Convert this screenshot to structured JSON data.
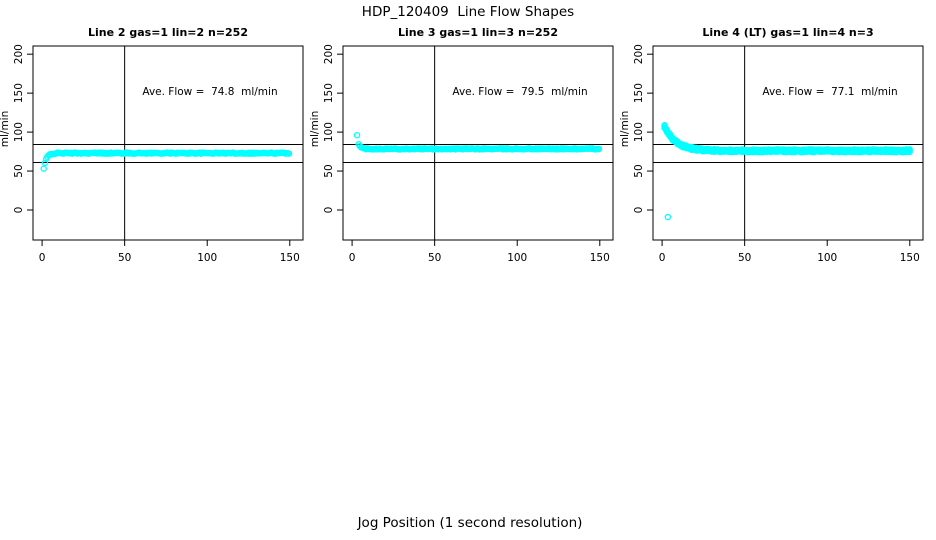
{
  "chart_data": {
    "type": "scatter",
    "title": "HDP_120409  Line Flow Shapes",
    "xlabel": "Jog Position (1 second resolution)",
    "ylabel": "ml/min",
    "x_ticks": [
      0,
      50,
      100,
      150
    ],
    "y_ticks": [
      0,
      50,
      100,
      150,
      200
    ],
    "xlim": [
      -5.5,
      158
    ],
    "ylim": [
      -38.5,
      210.5
    ],
    "grid": false,
    "legend": "none",
    "point_color": "#00ffff",
    "axis_color": "#000000",
    "background": "#ffffff",
    "vline_x": 50,
    "ref_lines_y": [
      84,
      61
    ],
    "plots": [
      {
        "title": "Line 2 gas=1 lin=2 n=252",
        "annotation": "Ave. Flow =  74.8  ml/min",
        "ave_flow_ml_min": 74.8,
        "n": 252,
        "series_model": {
          "x_start": 1,
          "x_end": 150,
          "x_step": 0.75,
          "steady": 73,
          "start_offset": -20,
          "tau": 1.6,
          "runs": 1,
          "description": "rises from ~55 ml/min at x=1 to a flat band of ~73 ml/min by x=8, constant to x=150"
        },
        "outliers": []
      },
      {
        "title": "Line 3 gas=1 lin=3 n=252",
        "annotation": "Ave. Flow =  79.5  ml/min",
        "ave_flow_ml_min": 79.5,
        "n": 252,
        "series_model": {
          "x_start": 4,
          "x_end": 150,
          "x_step": 0.75,
          "steady": 78.5,
          "start_offset": 6,
          "tau": 1.2,
          "runs": 1,
          "description": "single high point near 96 ml/min at x=3, then a flat band of ~79 ml/min from x=4 to x=150"
        },
        "outliers": [
          [
            3,
            96
          ]
        ]
      },
      {
        "title": "Line 4 (LT) gas=1 lin=4 n=3",
        "annotation": "Ave. Flow =  77.1  ml/min",
        "ave_flow_ml_min": 77.1,
        "n": 3,
        "series_model": {
          "x_start": 1.5,
          "x_end": 150,
          "x_step": 0.7,
          "steady": 76,
          "start_offset": 31,
          "tau": 7,
          "runs": 3,
          "description": "three overlapping runs decaying from ~107 ml/min at x=2 to ~76 ml/min by x=30, flat to x=150; one outlier near 0"
        },
        "outliers": [
          [
            3.5,
            -9
          ]
        ]
      }
    ]
  }
}
